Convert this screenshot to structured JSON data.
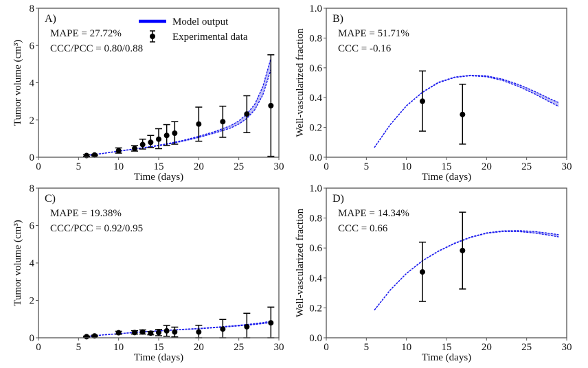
{
  "chart_data": [
    {
      "id": "A",
      "type": "line",
      "panel_label": "A)",
      "xlabel": "Time (days)",
      "ylabel": "Tumor volume (cm³)",
      "xlim": [
        0,
        30
      ],
      "ylim": [
        0,
        8
      ],
      "xticks": [
        0,
        5,
        10,
        15,
        20,
        25,
        30
      ],
      "yticks": [
        0,
        2,
        4,
        6,
        8
      ],
      "ytick_format": "int",
      "annotations": [
        "MAPE = 27.72%",
        "CCC/PCC = 0.80/0.88"
      ],
      "legend": {
        "placement": "top-center",
        "entries": [
          {
            "label": "Model output",
            "kind": "band",
            "color": "#0000ff"
          },
          {
            "label": "Experimental data",
            "kind": "errorbar",
            "color": "#000000"
          }
        ]
      },
      "model": {
        "name": "Model output",
        "color": "#1a1aee",
        "x": [
          6,
          8,
          10,
          12,
          14,
          16,
          18,
          20,
          22,
          24,
          25,
          26,
          27,
          28,
          29
        ],
        "lower": [
          0.1,
          0.2,
          0.32,
          0.43,
          0.55,
          0.69,
          0.86,
          1.06,
          1.3,
          1.57,
          1.78,
          2.08,
          2.55,
          3.35,
          4.7
        ],
        "upper": [
          0.1,
          0.2,
          0.33,
          0.45,
          0.57,
          0.72,
          0.9,
          1.12,
          1.38,
          1.7,
          1.95,
          2.32,
          2.85,
          3.8,
          5.3
        ]
      },
      "experimental": {
        "name": "Experimental data",
        "x": [
          6,
          7,
          10,
          12,
          13,
          14,
          15,
          16,
          17,
          20,
          23,
          26,
          29
        ],
        "y": [
          0.09,
          0.12,
          0.35,
          0.47,
          0.68,
          0.8,
          0.97,
          1.17,
          1.29,
          1.78,
          1.91,
          2.32,
          2.77
        ],
        "err_low": [
          0.05,
          0.08,
          0.22,
          0.33,
          0.44,
          0.52,
          0.46,
          0.63,
          0.7,
          0.86,
          1.07,
          1.32,
          0.05
        ],
        "err_high": [
          0.13,
          0.16,
          0.5,
          0.62,
          0.97,
          1.17,
          1.53,
          1.75,
          1.91,
          2.69,
          2.74,
          3.3,
          5.5
        ]
      }
    },
    {
      "id": "B",
      "type": "line",
      "panel_label": "B)",
      "xlabel": "Time (days)",
      "ylabel": "Well-vascularized fraction",
      "xlim": [
        0,
        30
      ],
      "ylim": [
        0,
        1.0
      ],
      "xticks": [
        0,
        5,
        10,
        15,
        20,
        25,
        30
      ],
      "yticks": [
        0.0,
        0.2,
        0.4,
        0.6,
        0.8,
        1.0
      ],
      "ytick_format": "1dp",
      "annotations": [
        "MAPE = 51.71%",
        "CCC = -0.16"
      ],
      "model": {
        "name": "Model output",
        "color": "#1a1aee",
        "x": [
          6,
          8,
          10,
          12,
          14,
          16,
          18,
          20,
          22,
          24,
          26,
          28,
          29
        ],
        "lower": [
          0.065,
          0.22,
          0.345,
          0.435,
          0.5,
          0.535,
          0.547,
          0.54,
          0.515,
          0.475,
          0.425,
          0.368,
          0.341
        ],
        "upper": [
          0.065,
          0.22,
          0.345,
          0.437,
          0.503,
          0.538,
          0.55,
          0.546,
          0.524,
          0.488,
          0.442,
          0.39,
          0.367
        ]
      },
      "experimental": {
        "name": "Experimental data",
        "x": [
          12,
          17
        ],
        "y": [
          0.376,
          0.287
        ],
        "err_low": [
          0.175,
          0.088
        ],
        "err_high": [
          0.579,
          0.49
        ]
      }
    },
    {
      "id": "C",
      "type": "line",
      "panel_label": "C)",
      "xlabel": "Time (days)",
      "ylabel": "Tumor volume (cm³)",
      "xlim": [
        0,
        30
      ],
      "ylim": [
        0,
        8
      ],
      "xticks": [
        0,
        5,
        10,
        15,
        20,
        25,
        30
      ],
      "yticks": [
        0,
        2,
        4,
        6,
        8
      ],
      "ytick_format": "int",
      "annotations": [
        "MAPE = 19.38%",
        "CCC/PCC = 0.92/0.95"
      ],
      "model": {
        "name": "Model output",
        "color": "#1a1aee",
        "x": [
          6,
          8,
          10,
          12,
          14,
          16,
          18,
          20,
          22,
          24,
          26,
          28,
          29
        ],
        "lower": [
          0.07,
          0.15,
          0.22,
          0.28,
          0.34,
          0.39,
          0.44,
          0.48,
          0.54,
          0.6,
          0.67,
          0.76,
          0.82
        ],
        "upper": [
          0.07,
          0.15,
          0.22,
          0.29,
          0.35,
          0.4,
          0.45,
          0.5,
          0.56,
          0.63,
          0.71,
          0.81,
          0.88
        ]
      },
      "experimental": {
        "name": "Experimental data",
        "x": [
          6,
          7,
          10,
          12,
          13,
          14,
          15,
          16,
          17,
          20,
          23,
          26,
          29
        ],
        "y": [
          0.06,
          0.1,
          0.27,
          0.28,
          0.31,
          0.25,
          0.28,
          0.37,
          0.31,
          0.31,
          0.47,
          0.59,
          0.8
        ],
        "err_low": [
          0.03,
          0.06,
          0.19,
          0.2,
          0.2,
          0.16,
          0.11,
          0.08,
          0.05,
          0.0,
          0.0,
          0.0,
          0.0
        ],
        "err_high": [
          0.09,
          0.14,
          0.35,
          0.38,
          0.42,
          0.34,
          0.45,
          0.66,
          0.57,
          0.67,
          0.98,
          1.31,
          1.64
        ]
      }
    },
    {
      "id": "D",
      "type": "line",
      "panel_label": "D)",
      "xlabel": "Time (days)",
      "ylabel": "Well-vascularized fraction",
      "xlim": [
        0,
        30
      ],
      "ylim": [
        0,
        1.0
      ],
      "xticks": [
        0,
        5,
        10,
        15,
        20,
        25,
        30
      ],
      "yticks": [
        0.0,
        0.2,
        0.4,
        0.6,
        0.8,
        1.0
      ],
      "ytick_format": "1dp",
      "annotations": [
        "MAPE = 14.34%",
        "CCC = 0.66"
      ],
      "model": {
        "name": "Model output",
        "color": "#1a1aee",
        "x": [
          6,
          8,
          10,
          12,
          14,
          16,
          18,
          20,
          22,
          24,
          26,
          28,
          29
        ],
        "lower": [
          0.185,
          0.32,
          0.43,
          0.514,
          0.578,
          0.63,
          0.67,
          0.698,
          0.71,
          0.71,
          0.7,
          0.684,
          0.674
        ],
        "upper": [
          0.185,
          0.32,
          0.43,
          0.515,
          0.58,
          0.632,
          0.673,
          0.701,
          0.714,
          0.716,
          0.71,
          0.697,
          0.689
        ]
      },
      "experimental": {
        "name": "Experimental data",
        "x": [
          12,
          17
        ],
        "y": [
          0.44,
          0.583
        ],
        "err_low": [
          0.243,
          0.326
        ],
        "err_high": [
          0.639,
          0.839
        ]
      }
    }
  ]
}
